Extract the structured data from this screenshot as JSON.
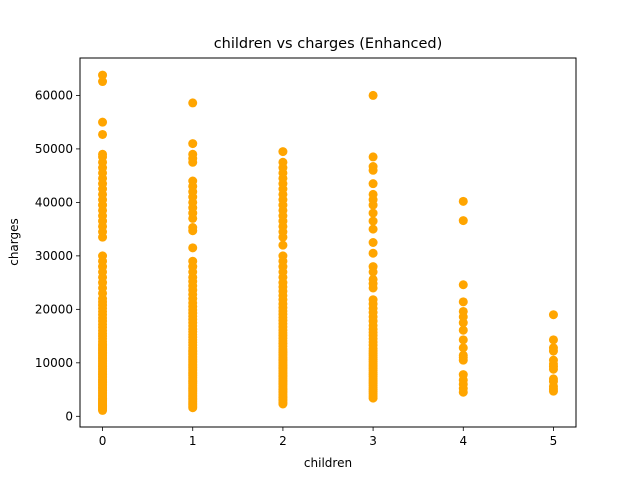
{
  "chart_data": {
    "type": "scatter",
    "title": "children vs charges (Enhanced)",
    "xlabel": "children",
    "ylabel": "charges",
    "xlim": [
      -0.25,
      5.25
    ],
    "ylim": [
      -2000,
      67000
    ],
    "xticks": [
      0,
      1,
      2,
      3,
      4,
      5
    ],
    "yticks": [
      0,
      10000,
      20000,
      30000,
      40000,
      50000,
      60000
    ],
    "grid": false,
    "color": "#ffa500",
    "points_by_children": [
      {
        "x": 0,
        "y": [
          1100,
          1300,
          1500,
          1700,
          1900,
          2100,
          2300,
          2500,
          2700,
          2900,
          3100,
          3300,
          3600,
          3900,
          4200,
          4500,
          4800,
          5100,
          5400,
          5700,
          6000,
          6300,
          6600,
          6900,
          7200,
          7500,
          7800,
          8100,
          8400,
          8700,
          9000,
          9300,
          9600,
          9900,
          10200,
          10500,
          10800,
          11100,
          11400,
          11700,
          12000,
          12300,
          12600,
          12900,
          13200,
          13500,
          14000,
          14500,
          15000,
          15500,
          16000,
          16600,
          17200,
          17800,
          18400,
          19000,
          19600,
          20200,
          20800,
          21400,
          22000,
          23000,
          24000,
          25000,
          26000,
          27000,
          28000,
          29000,
          30000,
          33500,
          34500,
          35500,
          36500,
          37500,
          38500,
          39500,
          40500,
          41500,
          42500,
          43500,
          44500,
          45500,
          46500,
          47500,
          48500,
          49000,
          52700,
          55000,
          62600,
          63800
        ]
      },
      {
        "x": 1,
        "y": [
          1600,
          1900,
          2200,
          2500,
          2800,
          3100,
          3400,
          3700,
          4000,
          4300,
          4600,
          4900,
          5200,
          5500,
          5800,
          6100,
          6400,
          6700,
          7000,
          7300,
          7600,
          7900,
          8200,
          8500,
          8800,
          9100,
          9400,
          9700,
          10000,
          10300,
          10600,
          10900,
          11200,
          11500,
          11800,
          12100,
          12400,
          12800,
          13300,
          13800,
          14300,
          14800,
          15300,
          15800,
          16300,
          16900,
          17500,
          18100,
          18700,
          19300,
          19900,
          20500,
          21200,
          22000,
          22800,
          23600,
          24400,
          25200,
          26000,
          27000,
          28000,
          29000,
          31500,
          34700,
          35300,
          37000,
          38000,
          39000,
          40000,
          41000,
          42000,
          43000,
          44000,
          47500,
          48200,
          49000,
          51000,
          58600
        ]
      },
      {
        "x": 2,
        "y": [
          2300,
          2600,
          2900,
          3200,
          3500,
          3800,
          4100,
          4400,
          4700,
          5000,
          5300,
          5600,
          5900,
          6200,
          6500,
          6800,
          7100,
          7400,
          7700,
          8000,
          8300,
          8600,
          8900,
          9200,
          9500,
          9800,
          10100,
          10400,
          10700,
          11000,
          11300,
          11600,
          11900,
          12200,
          12600,
          13100,
          13600,
          14100,
          14600,
          15100,
          15600,
          16100,
          16700,
          17300,
          17900,
          18500,
          19100,
          19700,
          20300,
          21000,
          21800,
          22600,
          23400,
          24200,
          25000,
          26000,
          27000,
          28000,
          29000,
          30000,
          32000,
          33500,
          34500,
          35500,
          36500,
          37500,
          38500,
          39500,
          40500,
          41500,
          42500,
          43500,
          44500,
          45500,
          46500,
          47500,
          49500
        ]
      },
      {
        "x": 3,
        "y": [
          3400,
          3800,
          4200,
          4600,
          5000,
          5400,
          5800,
          6200,
          6600,
          7000,
          7400,
          7800,
          8200,
          8600,
          9000,
          9400,
          9800,
          10200,
          10600,
          11000,
          11400,
          11800,
          12200,
          12700,
          13300,
          13900,
          14500,
          15100,
          15700,
          16300,
          17000,
          17800,
          18600,
          19400,
          20200,
          21000,
          21800,
          24000,
          24800,
          25600,
          27000,
          28000,
          30500,
          32500,
          35000,
          36500,
          38000,
          39500,
          40500,
          41500,
          43500,
          46000,
          46700,
          48500,
          60000
        ]
      },
      {
        "x": 4,
        "y": [
          4500,
          5200,
          6000,
          6800,
          7800,
          10500,
          11000,
          11400,
          12800,
          14300,
          16100,
          17500,
          18600,
          19600,
          21400,
          24600,
          36600,
          40200
        ]
      },
      {
        "x": 5,
        "y": [
          4700,
          5100,
          5600,
          6500,
          7000,
          8800,
          9300,
          9800,
          10500,
          12200,
          12800,
          14300,
          19000
        ]
      }
    ]
  }
}
